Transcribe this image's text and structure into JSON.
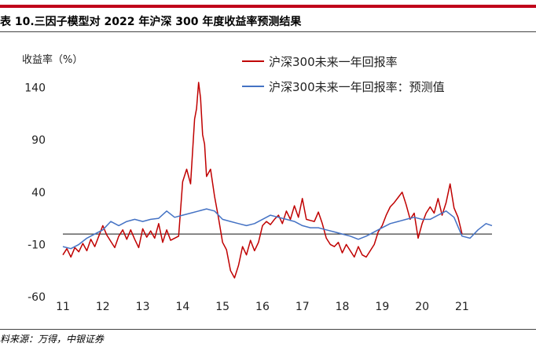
{
  "header": {
    "title": "表 10.三因子模型对 2022 年沪深 300 年度收益率预测结果",
    "source": "料来源：万得，中银证券"
  },
  "chart_data": {
    "type": "line",
    "title": "",
    "ylabel": "收益率（%）",
    "xlabel": "",
    "ylim": [
      -60,
      160
    ],
    "yticks": [
      140,
      90,
      40,
      -10,
      -60
    ],
    "xlim": [
      2011,
      2021.75
    ],
    "xticks": [
      "11",
      "12",
      "13",
      "14",
      "15",
      "16",
      "17",
      "18",
      "19",
      "20",
      "21"
    ],
    "reference_line": 0,
    "legend_position": "top-right",
    "colors": {
      "actual": "#c00000",
      "predicted": "#4472c4",
      "baseline": "#404040"
    },
    "series": [
      {
        "name": "沪深300未来一年回报率",
        "x": [
          2011.0,
          2011.1,
          2011.2,
          2011.3,
          2011.4,
          2011.5,
          2011.6,
          2011.7,
          2011.8,
          2011.9,
          2012.0,
          2012.1,
          2012.2,
          2012.3,
          2012.4,
          2012.5,
          2012.6,
          2012.7,
          2012.8,
          2012.9,
          2013.0,
          2013.1,
          2013.2,
          2013.3,
          2013.4,
          2013.5,
          2013.6,
          2013.7,
          2013.8,
          2013.9,
          2014.0,
          2014.1,
          2014.2,
          2014.3,
          2014.35,
          2014.4,
          2014.45,
          2014.5,
          2014.55,
          2014.6,
          2014.7,
          2014.8,
          2014.9,
          2015.0,
          2015.1,
          2015.2,
          2015.3,
          2015.4,
          2015.5,
          2015.6,
          2015.7,
          2015.8,
          2015.9,
          2016.0,
          2016.1,
          2016.2,
          2016.3,
          2016.4,
          2016.5,
          2016.6,
          2016.7,
          2016.8,
          2016.9,
          2017.0,
          2017.1,
          2017.2,
          2017.3,
          2017.4,
          2017.5,
          2017.6,
          2017.7,
          2017.8,
          2017.9,
          2018.0,
          2018.1,
          2018.2,
          2018.3,
          2018.4,
          2018.5,
          2018.6,
          2018.7,
          2018.8,
          2018.9,
          2019.0,
          2019.1,
          2019.2,
          2019.3,
          2019.4,
          2019.5,
          2019.6,
          2019.7,
          2019.8,
          2019.9,
          2020.0,
          2020.1,
          2020.2,
          2020.3,
          2020.4,
          2020.5,
          2020.6,
          2020.7,
          2020.8,
          2020.9,
          2021.0
        ],
        "values": [
          -20,
          -14,
          -22,
          -13,
          -17,
          -9,
          -16,
          -5,
          -12,
          -2,
          8,
          -1,
          -7,
          -13,
          -2,
          4,
          -5,
          4,
          -5,
          -13,
          5,
          -3,
          3,
          -4,
          10,
          -8,
          4,
          -6,
          -4,
          -2,
          50,
          62,
          48,
          110,
          120,
          145,
          130,
          95,
          86,
          55,
          62,
          36,
          15,
          -8,
          -15,
          -35,
          -42,
          -30,
          -12,
          -20,
          -6,
          -16,
          -8,
          8,
          12,
          9,
          14,
          18,
          10,
          22,
          14,
          27,
          16,
          34,
          14,
          13,
          12,
          21,
          10,
          -4,
          -10,
          -12,
          -8,
          -18,
          -10,
          -16,
          -22,
          -12,
          -20,
          -22,
          -16,
          -10,
          2,
          8,
          18,
          26,
          30,
          35,
          40,
          28,
          14,
          20,
          -4,
          10,
          20,
          26,
          20,
          34,
          18,
          30,
          48,
          25,
          16,
          0
        ]
      },
      {
        "name": "沪深300未来一年回报率：预测值",
        "x": [
          2011.0,
          2011.2,
          2011.4,
          2011.6,
          2011.8,
          2012.0,
          2012.2,
          2012.4,
          2012.6,
          2012.8,
          2013.0,
          2013.2,
          2013.4,
          2013.6,
          2013.8,
          2014.0,
          2014.2,
          2014.4,
          2014.6,
          2014.8,
          2015.0,
          2015.2,
          2015.4,
          2015.6,
          2015.8,
          2016.0,
          2016.2,
          2016.4,
          2016.6,
          2016.8,
          2017.0,
          2017.2,
          2017.4,
          2017.6,
          2017.8,
          2018.0,
          2018.2,
          2018.4,
          2018.6,
          2018.8,
          2019.0,
          2019.2,
          2019.4,
          2019.6,
          2019.8,
          2020.0,
          2020.2,
          2020.4,
          2020.6,
          2020.8,
          2021.0,
          2021.2,
          2021.4,
          2021.6,
          2021.75
        ],
        "values": [
          -12,
          -14,
          -10,
          -4,
          0,
          4,
          12,
          8,
          12,
          14,
          12,
          14,
          15,
          22,
          16,
          18,
          20,
          22,
          24,
          22,
          14,
          12,
          10,
          8,
          10,
          14,
          18,
          16,
          14,
          12,
          8,
          6,
          6,
          4,
          2,
          0,
          -2,
          -5,
          -2,
          2,
          6,
          10,
          12,
          14,
          16,
          14,
          14,
          18,
          22,
          16,
          -2,
          -4,
          4,
          10,
          8
        ]
      }
    ]
  }
}
